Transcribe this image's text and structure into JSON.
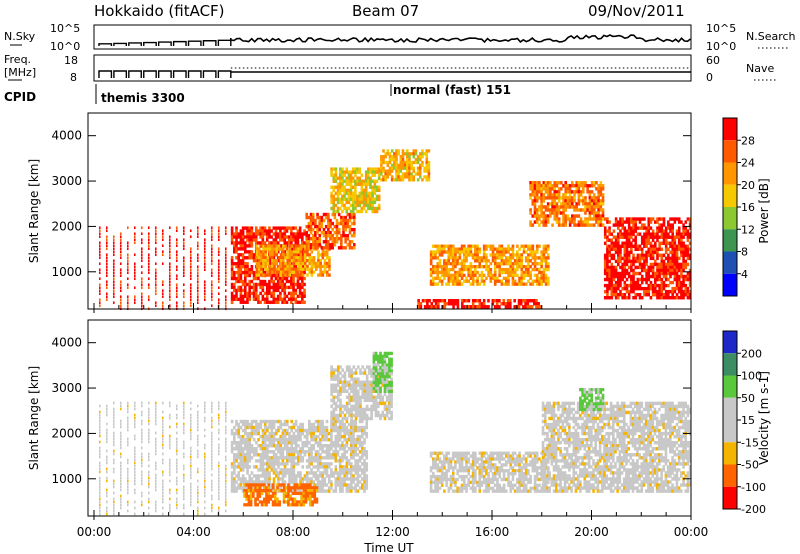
{
  "header": {
    "station": "Hokkaido (fitACF)",
    "beam": "Beam 07",
    "date": "09/Nov/2011"
  },
  "top_panels": {
    "nsky_label": "N.Sky",
    "nsky_ticks": [
      "10^5",
      "10^0"
    ],
    "nsearch_label": "N.Search",
    "nsearch_ticks": [
      "10^5",
      "10^0"
    ],
    "freq_label_line1": "Freq.",
    "freq_label_line2": "[MHz]",
    "freq_ticks": [
      "18",
      "8"
    ],
    "nave_label": "Nave",
    "nave_ticks": [
      "60",
      "0"
    ],
    "cpid_label": "CPID",
    "cpid_modes": [
      {
        "name": "themis 3300",
        "start_hour": 0
      },
      {
        "name": "normal (fast) 151",
        "start_hour": 12
      }
    ]
  },
  "power_panel": {
    "ylabel": "Slant Range [km]",
    "yticks": [
      "4000",
      "3000",
      "2000",
      "1000"
    ],
    "colorbar_label": "Power [dB]",
    "colorbar_ticks": [
      "28",
      "24",
      "20",
      "16",
      "12",
      "8",
      "4"
    ],
    "colorbar_colors": [
      "#ff0000",
      "#ff5a00",
      "#ff9600",
      "#f5c800",
      "#8cc832",
      "#3c9650",
      "#1e50b4",
      "#0000ff"
    ]
  },
  "velocity_panel": {
    "ylabel": "Slant Range [km]",
    "yticks": [
      "4000",
      "3000",
      "2000",
      "1000"
    ],
    "colorbar_label": "Velocity [m s-1]",
    "colorbar_ticks": [
      "200",
      "100",
      "50",
      "15",
      "-15",
      "-50",
      "-100",
      "-200"
    ],
    "colorbar_colors": [
      "#1e28c8",
      "#3c8c64",
      "#5ac83c",
      "#c8c8c8",
      "#c8c8c8",
      "#f5b400",
      "#ff6400",
      "#ff0000"
    ]
  },
  "x_axis": {
    "label": "Time UT",
    "ticks": [
      "00:00",
      "04:00",
      "08:00",
      "12:00",
      "16:00",
      "20:00",
      "00:00"
    ]
  },
  "chart_data": [
    {
      "type": "heatmap",
      "title": "Power [dB]",
      "xlabel": "Time UT",
      "ylabel": "Slant Range [km]",
      "xlim": [
        0,
        24
      ],
      "ylim": [
        180,
        4500
      ],
      "clim": [
        0,
        30
      ],
      "regions": [
        {
          "x0": 0.2,
          "x1": 5.5,
          "y0": 200,
          "y1": 2000,
          "value": 28,
          "pattern": "stripes"
        },
        {
          "x0": 5.5,
          "x1": 8.5,
          "y0": 300,
          "y1": 2000,
          "value": 27
        },
        {
          "x0": 6.5,
          "x1": 9.5,
          "y0": 900,
          "y1": 1600,
          "value": 20
        },
        {
          "x0": 8.5,
          "x1": 10.5,
          "y0": 1500,
          "y1": 2300,
          "value": 24
        },
        {
          "x0": 9.5,
          "x1": 11.5,
          "y0": 2300,
          "y1": 3300,
          "value": 16
        },
        {
          "x0": 11.5,
          "x1": 13.5,
          "y0": 3000,
          "y1": 3700,
          "value": 18
        },
        {
          "x0": 13.5,
          "x1": 18.3,
          "y0": 700,
          "y1": 1600,
          "value": 20
        },
        {
          "x0": 17.5,
          "x1": 20.5,
          "y0": 2000,
          "y1": 3000,
          "value": 22
        },
        {
          "x0": 20.5,
          "x1": 24,
          "y0": 400,
          "y1": 2200,
          "value": 28
        },
        {
          "x0": 13,
          "x1": 18,
          "y0": 200,
          "y1": 400,
          "value": 28
        }
      ]
    },
    {
      "type": "heatmap",
      "title": "Velocity [m s-1]",
      "xlabel": "Time UT",
      "ylabel": "Slant Range [km]",
      "xlim": [
        0,
        24
      ],
      "ylim": [
        180,
        4500
      ],
      "clim": [
        -250,
        250
      ],
      "regions": [
        {
          "x0": 0.2,
          "x1": 5.5,
          "y0": 200,
          "y1": 2700,
          "value": 0,
          "pattern": "stripes"
        },
        {
          "x0": 5.5,
          "x1": 11,
          "y0": 700,
          "y1": 2300,
          "value": 0
        },
        {
          "x0": 9.5,
          "x1": 12,
          "y0": 2300,
          "y1": 3500,
          "value": 0
        },
        {
          "x0": 11.2,
          "x1": 12,
          "y0": 2900,
          "y1": 3800,
          "value": 60
        },
        {
          "x0": 13.5,
          "x1": 18.3,
          "y0": 700,
          "y1": 1600,
          "value": 0
        },
        {
          "x0": 18,
          "x1": 24,
          "y0": 700,
          "y1": 2700,
          "value": 0
        },
        {
          "x0": 19.5,
          "x1": 20.5,
          "y0": 2500,
          "y1": 3000,
          "value": 60
        },
        {
          "x0": 6,
          "x1": 9,
          "y0": 400,
          "y1": 900,
          "value": -60
        }
      ]
    }
  ]
}
